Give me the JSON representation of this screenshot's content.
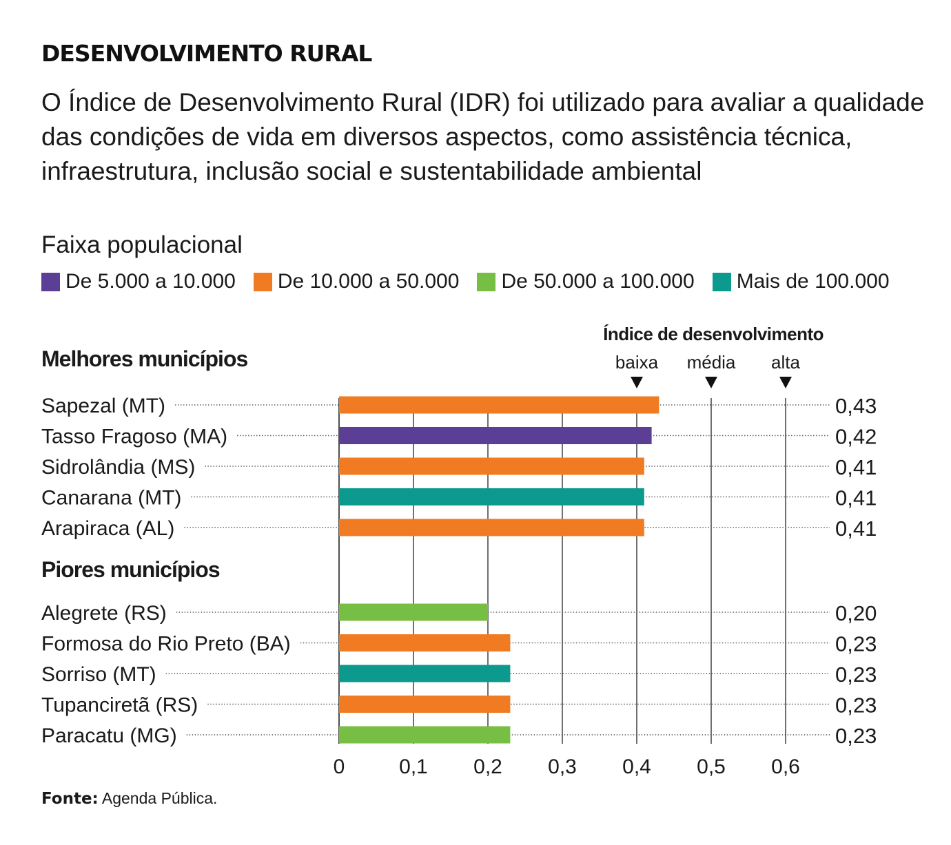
{
  "title": "DESENVOLVIMENTO RURAL",
  "subtitle": "O Índice de Desenvolvimento Rural (IDR) foi utilizado para avaliar a qualidade das condições de vida em diversos aspectos, como assistência técnica, infraestrutura, inclusão social e sustentabilidade ambiental",
  "legend": {
    "title": "Faixa populacional",
    "items": [
      {
        "label": "De 5.000 a 10.000",
        "color": "#5b3f96"
      },
      {
        "label": "De 10.000 a 50.000",
        "color": "#f07b22"
      },
      {
        "label": "De 50.000 a 100.000",
        "color": "#77bf44"
      },
      {
        "label": "Mais de 100.000",
        "color": "#0b9a8d"
      }
    ]
  },
  "source": {
    "prefix": "Fonte:",
    "text": "Agenda Pública."
  },
  "chart_data": {
    "type": "bar",
    "orientation": "horizontal",
    "index_header": "Índice de desenvolvimento",
    "markers": [
      {
        "label": "baixa",
        "value": 0.4
      },
      {
        "label": "média",
        "value": 0.5
      },
      {
        "label": "alta",
        "value": 0.6
      }
    ],
    "xlim": [
      0,
      0.6
    ],
    "ticks": [
      {
        "value": 0,
        "label": "0"
      },
      {
        "value": 0.1,
        "label": "0,1"
      },
      {
        "value": 0.2,
        "label": "0,2"
      },
      {
        "value": 0.3,
        "label": "0,3"
      },
      {
        "value": 0.4,
        "label": "0,4"
      },
      {
        "value": 0.5,
        "label": "0,5"
      },
      {
        "value": 0.6,
        "label": "0,6"
      }
    ],
    "grid": true,
    "groups": [
      {
        "title": "Melhores municípios",
        "bars": [
          {
            "label": "Sapezal (MT)",
            "value": 0.43,
            "value_label": "0,43",
            "category": "De 10.000 a 50.000"
          },
          {
            "label": "Tasso Fragoso (MA)",
            "value": 0.42,
            "value_label": "0,42",
            "category": "De 5.000 a 10.000"
          },
          {
            "label": "Sidrolândia (MS)",
            "value": 0.41,
            "value_label": "0,41",
            "category": "De 10.000 a 50.000"
          },
          {
            "label": "Canarana (MT)",
            "value": 0.41,
            "value_label": "0,41",
            "category": "Mais de 100.000"
          },
          {
            "label": "Arapiraca (AL)",
            "value": 0.41,
            "value_label": "0,41",
            "category": "De 10.000 a 50.000"
          }
        ]
      },
      {
        "title": "Piores municípios",
        "bars": [
          {
            "label": "Alegrete (RS)",
            "value": 0.2,
            "value_label": "0,20",
            "category": "De 50.000 a 100.000"
          },
          {
            "label": "Formosa do Rio Preto (BA)",
            "value": 0.23,
            "value_label": "0,23",
            "category": "De 10.000 a 50.000"
          },
          {
            "label": "Sorriso (MT)",
            "value": 0.23,
            "value_label": "0,23",
            "category": "Mais de 100.000"
          },
          {
            "label": "Tupanciretã (RS)",
            "value": 0.23,
            "value_label": "0,23",
            "category": "De 10.000 a 50.000"
          },
          {
            "label": "Paracatu (MG)",
            "value": 0.23,
            "value_label": "0,23",
            "category": "De 50.000 a 100.000"
          }
        ]
      }
    ]
  }
}
